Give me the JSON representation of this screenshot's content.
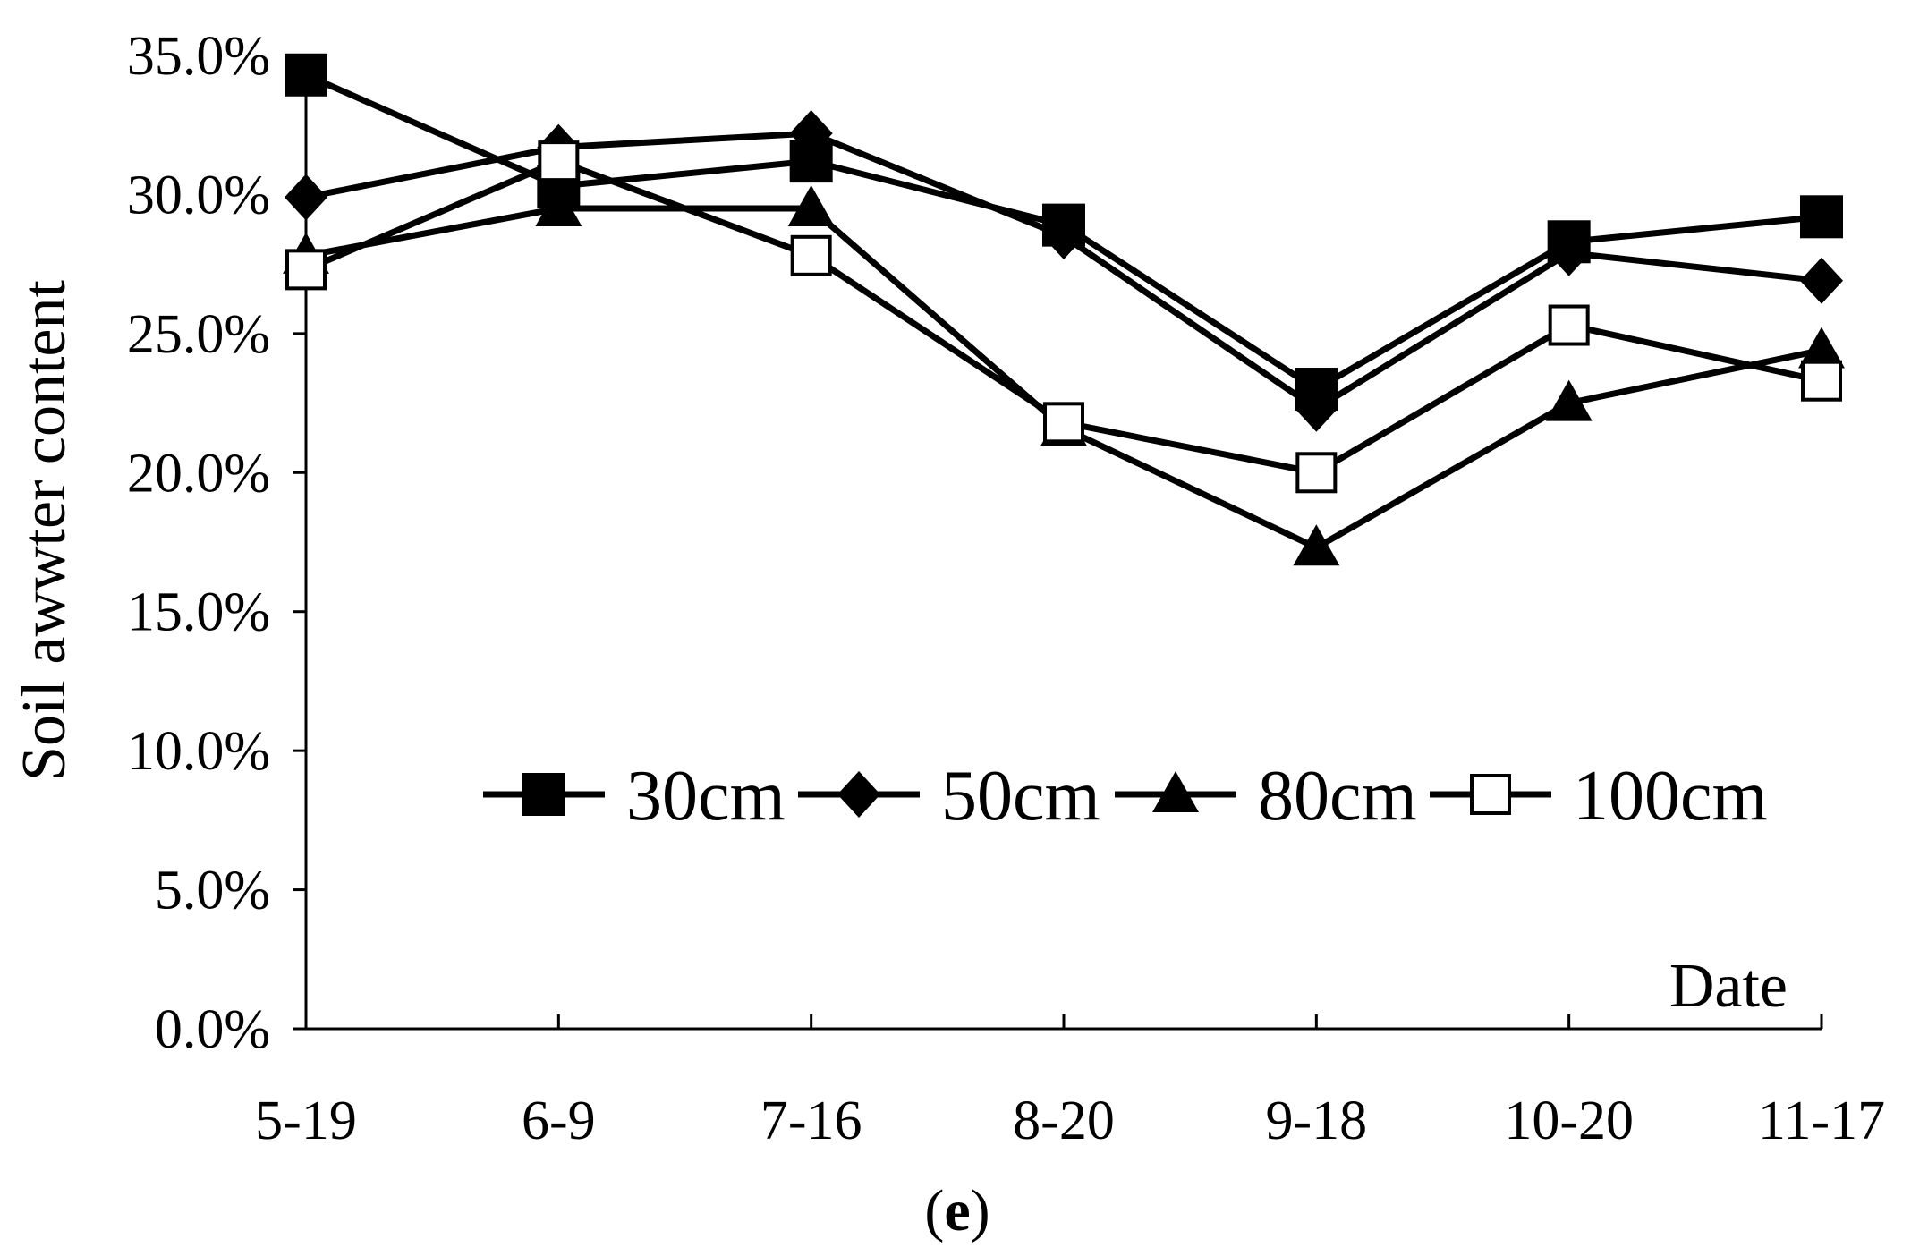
{
  "chart_data": {
    "type": "line",
    "title": "",
    "xlabel": "Date",
    "ylabel": "Soil awwter content",
    "categories": [
      "5-19",
      "6-9",
      "7-16",
      "8-20",
      "9-18",
      "10-20",
      "11-17"
    ],
    "ylim": [
      0,
      35
    ],
    "yticks": [
      0,
      5,
      10,
      15,
      20,
      25,
      30,
      35
    ],
    "ytick_labels": [
      "0.0%",
      "5.0%",
      "10.0%",
      "15.0%",
      "20.0%",
      "25.0%",
      "30.0%",
      "35.0%"
    ],
    "series": [
      {
        "name": "30cm",
        "marker": "filled-square",
        "values": [
          34.3,
          30.3,
          31.2,
          28.9,
          23.0,
          28.3,
          29.2
        ]
      },
      {
        "name": "50cm",
        "marker": "filled-diamond",
        "values": [
          29.9,
          31.7,
          32.2,
          28.5,
          22.3,
          27.9,
          26.9
        ]
      },
      {
        "name": "80cm",
        "marker": "filled-triangle",
        "values": [
          27.8,
          29.5,
          29.5,
          21.6,
          17.3,
          22.5,
          24.4
        ]
      },
      {
        "name": "100cm",
        "marker": "open-square",
        "values": [
          27.3,
          31.2,
          27.8,
          21.8,
          20.0,
          25.3,
          23.3
        ]
      }
    ],
    "legend": {
      "placement": "center-right inside plot",
      "labels": [
        "30cm",
        "50cm",
        "80cm",
        "100cm"
      ]
    },
    "grid": false
  },
  "caption": {
    "open": "(",
    "letter": "e",
    "close": ")"
  }
}
